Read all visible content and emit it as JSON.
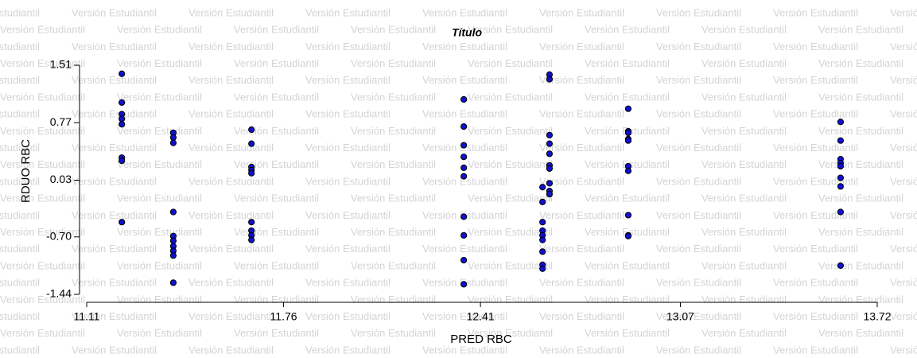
{
  "chart_data": {
    "type": "scatter",
    "title": "Título",
    "x_label": "PRED RBC",
    "y_label": "RDUO RBC",
    "watermark": "Versión Estudiantil",
    "color": "#1010d0",
    "xlim": [
      11.11,
      13.72
    ],
    "xticks": [
      11.11,
      11.76,
      12.41,
      13.07,
      13.72
    ],
    "ylim": [
      -1.44,
      1.51
    ],
    "yticks": [
      -1.44,
      {
        "value": -0.7,
        "label": "-0.70"
      },
      0.03,
      0.77,
      1.51
    ],
    "x": [
      11.226,
      11.226,
      11.226,
      11.226,
      11.226,
      11.226,
      11.226,
      11.226,
      11.396,
      11.396,
      11.396,
      11.396,
      11.396,
      11.396,
      11.396,
      11.396,
      11.396,
      11.396,
      11.654,
      11.654,
      11.654,
      11.654,
      11.654,
      11.654,
      11.654,
      11.654,
      11.654,
      12.355,
      12.355,
      12.355,
      12.355,
      12.355,
      12.355,
      12.355,
      12.355,
      12.355,
      12.355,
      12.615,
      12.615,
      12.615,
      12.615,
      12.615,
      12.615,
      12.615,
      12.615,
      12.615,
      12.638,
      12.638,
      12.638,
      12.638,
      12.638,
      12.638,
      12.638,
      12.638,
      12.638,
      12.638,
      12.898,
      12.898,
      12.898,
      12.898,
      12.898,
      12.898,
      12.898,
      12.898,
      12.898,
      12.898,
      13.599,
      13.599,
      13.599,
      13.599,
      13.599,
      13.599,
      13.599,
      13.599,
      13.599
    ],
    "y": [
      1.4,
      1.03,
      0.88,
      0.82,
      0.75,
      0.32,
      0.28,
      -0.51,
      0.64,
      0.58,
      0.51,
      -0.38,
      -0.69,
      -0.75,
      -0.82,
      -0.88,
      -0.94,
      -1.29,
      0.68,
      0.5,
      0.2,
      0.16,
      0.12,
      -0.51,
      -0.62,
      -0.68,
      -0.74,
      1.07,
      0.72,
      0.48,
      0.33,
      0.19,
      0.08,
      -0.44,
      -0.68,
      -1.0,
      -1.31,
      -0.06,
      -0.25,
      -0.51,
      -0.62,
      -0.68,
      -0.74,
      -0.89,
      -1.06,
      -1.11,
      1.39,
      1.33,
      0.61,
      0.5,
      0.37,
      0.22,
      0.18,
      -0.01,
      -0.11,
      -0.15,
      0.95,
      0.66,
      0.64,
      0.56,
      0.54,
      0.21,
      0.15,
      -0.42,
      -0.68,
      -0.69,
      0.78,
      0.54,
      0.3,
      0.25,
      0.21,
      0.06,
      -0.05,
      -0.38,
      -1.07
    ]
  }
}
